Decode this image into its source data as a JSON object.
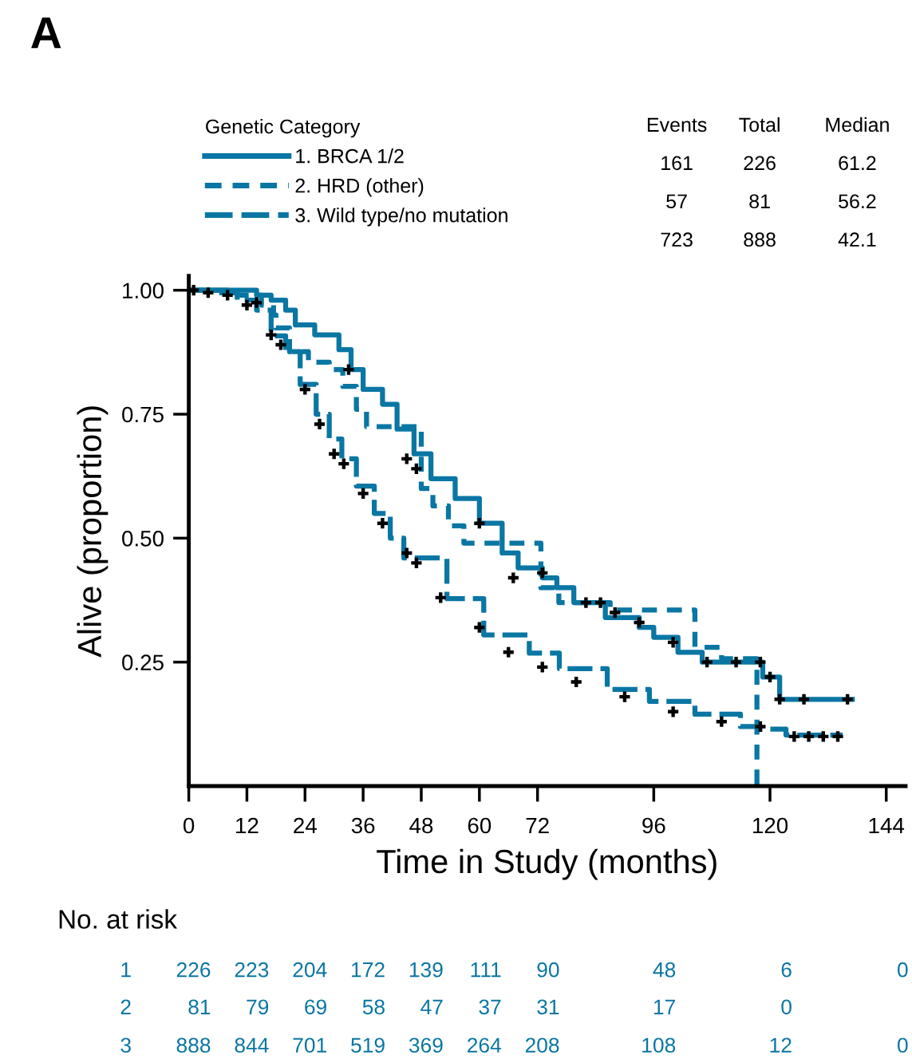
{
  "chart_data": {
    "type": "step",
    "xlabel": "Time in Study (months)",
    "ylabel": "Alive (proportion)",
    "legend_title": "Genetic Category",
    "legend": "top",
    "xlim": [
      0,
      148
    ],
    "xticks": [
      0,
      12,
      24,
      36,
      48,
      60,
      72,
      96,
      120,
      144
    ],
    "ylim": [
      0,
      1.029
    ],
    "yticks": [
      {
        "value": 1.0,
        "label": "1.00"
      },
      {
        "value": 0.75,
        "label": "0.75"
      },
      {
        "value": 0.5,
        "label": "0.50"
      },
      {
        "value": 0.25,
        "label": "0.25"
      }
    ],
    "grid": false,
    "annotations": [
      "A",
      "Events",
      "Total",
      "Median",
      "161",
      "226",
      "61.2",
      "57",
      "81",
      "56.2",
      "723",
      "888",
      "42.1",
      "No. at risk",
      "1",
      "226",
      "223",
      "204",
      "172",
      "139",
      "111",
      "90",
      "48",
      "6",
      "0",
      "2",
      "81",
      "79",
      "69",
      "58",
      "47",
      "37",
      "31",
      "17",
      "0",
      "3",
      "888",
      "844",
      "701",
      "519",
      "369",
      "264",
      "208",
      "108",
      "12",
      "0"
    ],
    "series": [
      {
        "name": "1. BRCA 1/2",
        "color": "#0a76a3",
        "line_style": "solid",
        "x": [
          0,
          10,
          14,
          17,
          20,
          22,
          26,
          31,
          33.5,
          36,
          40,
          43,
          46.5,
          50,
          55,
          60,
          64.7,
          68,
          73,
          76,
          79.5,
          86,
          93,
          96,
          101,
          106,
          118.5,
          122,
          137
        ],
        "values": [
          1.0,
          1.0,
          0.99,
          0.98,
          0.96,
          0.93,
          0.91,
          0.88,
          0.84,
          0.8,
          0.77,
          0.72,
          0.67,
          0.62,
          0.58,
          0.53,
          0.47,
          0.44,
          0.42,
          0.4,
          0.37,
          0.34,
          0.32,
          0.3,
          0.27,
          0.25,
          0.22,
          0.175,
          0.175
        ]
      },
      {
        "name": "2. HRD (other)",
        "color": "#0a76a3",
        "line_style": "dashed",
        "x": [
          0,
          10,
          15,
          17.5,
          18,
          20.8,
          24.7,
          29,
          31.8,
          34.6,
          36.7,
          48,
          50.4,
          53.6,
          56.8,
          72.7,
          76.4,
          87,
          104.5,
          110,
          117.3
        ],
        "values": [
          1.0,
          0.99,
          0.97,
          0.95,
          0.924,
          0.876,
          0.855,
          0.84,
          0.806,
          0.76,
          0.725,
          0.6,
          0.565,
          0.525,
          0.49,
          0.4,
          0.37,
          0.355,
          0.28,
          0.257,
          0.0
        ]
      },
      {
        "name": "3. Wild type/no mutation",
        "color": "#0a76a3",
        "line_style": "dashed",
        "x": [
          0,
          5.4,
          10,
          14,
          17,
          20,
          23,
          26.3,
          29,
          31.6,
          34.6,
          38.3,
          41.6,
          44.4,
          53.3,
          60.9,
          70.3,
          76.5,
          86.4,
          95.1,
          104.5,
          113.9,
          117.5,
          123.3,
          135
        ],
        "values": [
          1.0,
          0.995,
          0.98,
          0.96,
          0.908,
          0.876,
          0.81,
          0.75,
          0.7,
          0.66,
          0.605,
          0.55,
          0.5,
          0.46,
          0.378,
          0.305,
          0.268,
          0.237,
          0.195,
          0.171,
          0.145,
          0.12,
          0.115,
          0.103,
          0.103
        ]
      },
      {
        "type": "scatter",
        "color": "#000000",
        "marker": "cross",
        "x": [
          1,
          4,
          8,
          12,
          14,
          17,
          19,
          24,
          27,
          30,
          32,
          36,
          40,
          45,
          47,
          52,
          60,
          66,
          73,
          80,
          90,
          100,
          110,
          118,
          125,
          128,
          131,
          134,
          33,
          45,
          47,
          60,
          67,
          73,
          82,
          85,
          88,
          93,
          100,
          107,
          113,
          118,
          120,
          122,
          127,
          136
        ],
        "values": [
          1.0,
          0.995,
          0.99,
          0.97,
          0.975,
          0.91,
          0.89,
          0.8,
          0.73,
          0.67,
          0.65,
          0.59,
          0.53,
          0.47,
          0.45,
          0.38,
          0.32,
          0.27,
          0.24,
          0.21,
          0.18,
          0.15,
          0.13,
          0.12,
          0.1,
          0.1,
          0.1,
          0.1,
          0.84,
          0.66,
          0.64,
          0.53,
          0.42,
          0.43,
          0.37,
          0.37,
          0.35,
          0.33,
          0.29,
          0.25,
          0.25,
          0.25,
          0.22,
          0.175,
          0.175,
          0.175
        ]
      }
    ]
  }
}
